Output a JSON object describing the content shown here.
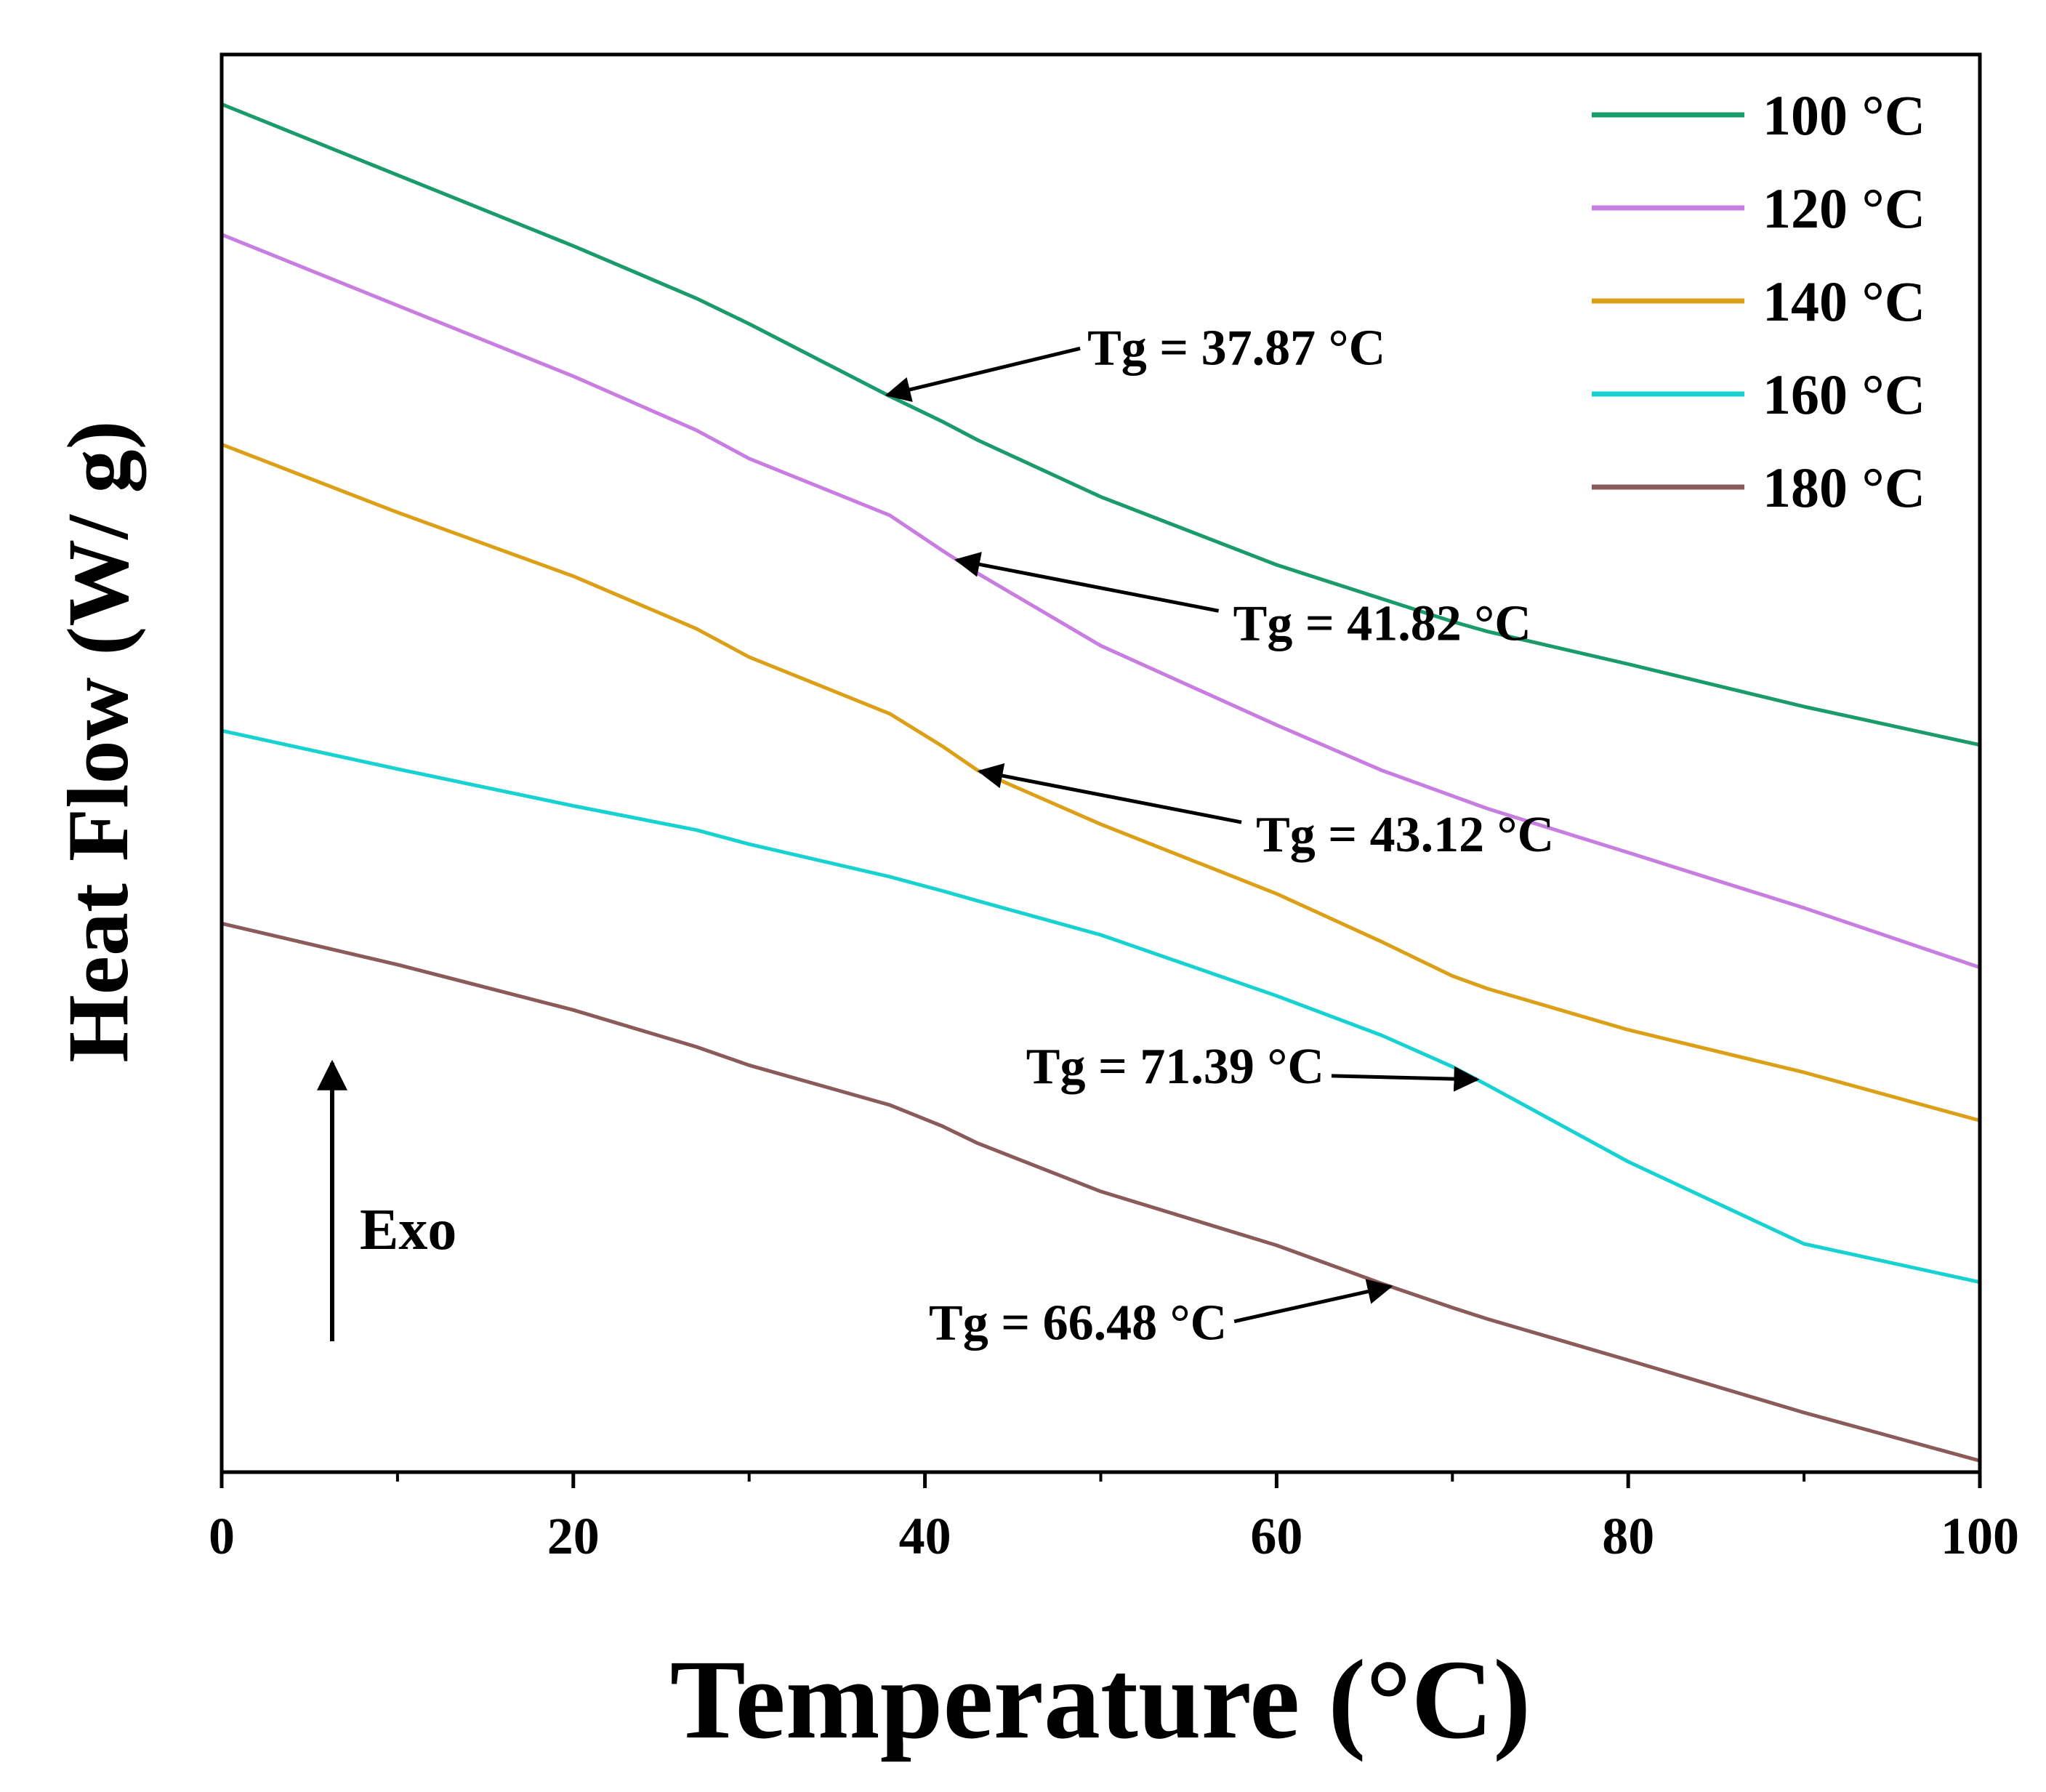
{
  "chart_data": {
    "type": "line",
    "title": "",
    "xlabel": "Temperature (°C)",
    "ylabel": "Heat Flow (W/ g)",
    "xlim": [
      0,
      100
    ],
    "ylim": [
      0,
      100
    ],
    "x_ticks": [
      0,
      20,
      40,
      60,
      80,
      100
    ],
    "x_minor_ticks": [
      10,
      30,
      50,
      70,
      90
    ],
    "y_ticks_shown": false,
    "legend_position": "top-right",
    "exo_label": "Exo",
    "x": [
      0,
      10,
      20,
      27,
      30,
      38,
      41,
      43,
      50,
      60,
      66,
      70,
      72,
      80,
      90,
      100
    ],
    "series": [
      {
        "name": "100 °C",
        "color": "#1a9b6c",
        "values": [
          96.5,
          91.5,
          86.5,
          82.8,
          81.0,
          75.9,
          74.1,
          72.8,
          68.8,
          64.0,
          61.6,
          60.0,
          59.3,
          57.0,
          54.0,
          51.3
        ]
      },
      {
        "name": "120 °C",
        "color": "#c77ee0",
        "values": [
          87.3,
          82.3,
          77.3,
          73.5,
          71.5,
          67.5,
          65.0,
          63.4,
          58.3,
          52.7,
          49.5,
          47.7,
          46.8,
          43.7,
          39.8,
          35.6
        ]
      },
      {
        "name": "140 °C",
        "color": "#dba018",
        "values": [
          72.5,
          67.7,
          63.2,
          59.5,
          57.5,
          53.5,
          51.2,
          49.5,
          45.7,
          40.8,
          37.4,
          35.0,
          34.1,
          31.2,
          28.2,
          24.8
        ]
      },
      {
        "name": "160 °C",
        "color": "#18d2d2",
        "values": [
          52.3,
          49.6,
          47.0,
          45.3,
          44.3,
          42.0,
          41.0,
          40.3,
          37.9,
          33.6,
          30.8,
          28.6,
          27.3,
          21.9,
          16.1,
          13.4
        ]
      },
      {
        "name": "180 °C",
        "color": "#8b5a5a",
        "values": [
          38.7,
          35.8,
          32.6,
          30.0,
          28.7,
          25.9,
          24.4,
          23.2,
          19.8,
          16.0,
          13.3,
          11.6,
          10.8,
          7.9,
          4.2,
          0.8
        ]
      }
    ],
    "annotations": [
      {
        "text": "Tg = 37.87 °C",
        "series": "100 °C",
        "tg": 37.87,
        "label_anchor": "right"
      },
      {
        "text": "Tg = 41.82 °C",
        "series": "120 °C",
        "tg": 41.82,
        "label_anchor": "lower-right"
      },
      {
        "text": "Tg = 43.12 °C",
        "series": "140 °C",
        "tg": 43.12,
        "label_anchor": "lower-right"
      },
      {
        "text": "Tg = 71.39 °C",
        "series": "160 °C",
        "tg": 71.39,
        "label_anchor": "left"
      },
      {
        "text": "Tg = 66.48 °C",
        "series": "180 °C",
        "tg": 66.48,
        "label_anchor": "lower-left"
      }
    ]
  }
}
